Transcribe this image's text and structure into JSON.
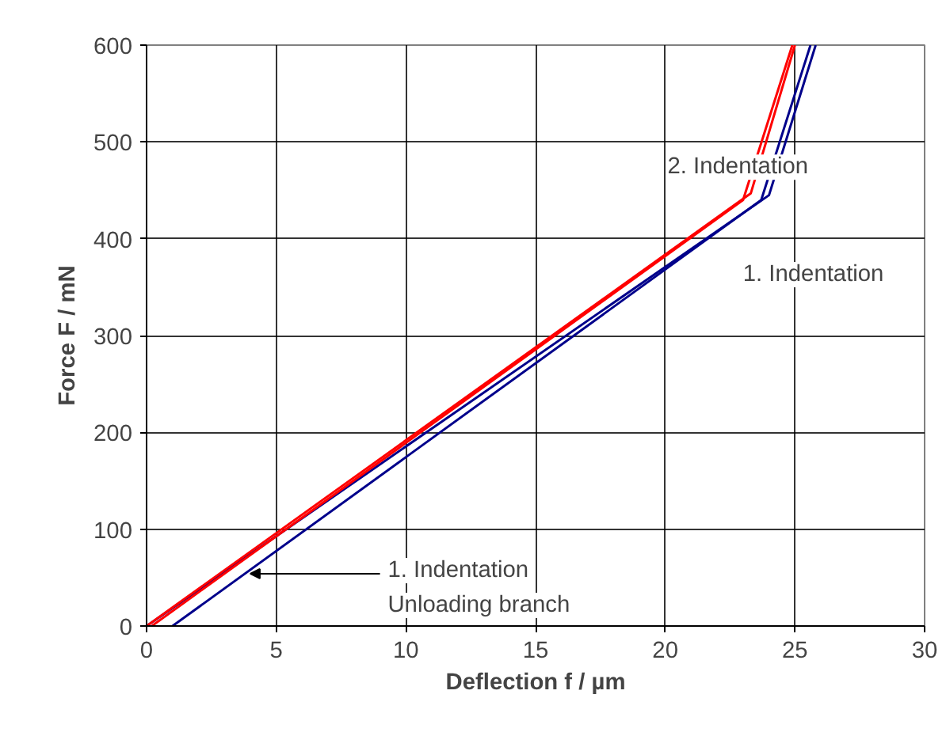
{
  "chart_data": {
    "type": "line",
    "xlabel": "Deflection f / µm",
    "ylabel": "Force F / mN",
    "xlim": [
      0,
      30
    ],
    "ylim": [
      0,
      600
    ],
    "xticks": [
      0,
      5,
      10,
      15,
      20,
      25,
      30
    ],
    "yticks": [
      0,
      100,
      200,
      300,
      400,
      500,
      600
    ],
    "grid": true,
    "marker": "none",
    "line_style": "solid",
    "series": [
      {
        "color": "#00008b",
        "x": [
          0,
          24.0,
          25.8
        ],
        "values": [
          0,
          445,
          600
        ]
      },
      {
        "color": "#00008b",
        "x": [
          1.0,
          23.7,
          25.6
        ],
        "values": [
          0,
          440,
          600
        ]
      },
      {
        "color": "#ff0000",
        "x": [
          0,
          23.3,
          25.0
        ],
        "values": [
          0,
          447,
          600
        ]
      },
      {
        "color": "#ff0000",
        "x": [
          0.2,
          23.0,
          24.9
        ],
        "values": [
          0,
          440,
          600
        ]
      }
    ],
    "annotations": [
      "2. Indentation",
      "1. Indentation",
      {
        "text": "1. Indentation\nUnloading branch",
        "x": 4.0,
        "y": 54
      }
    ]
  }
}
